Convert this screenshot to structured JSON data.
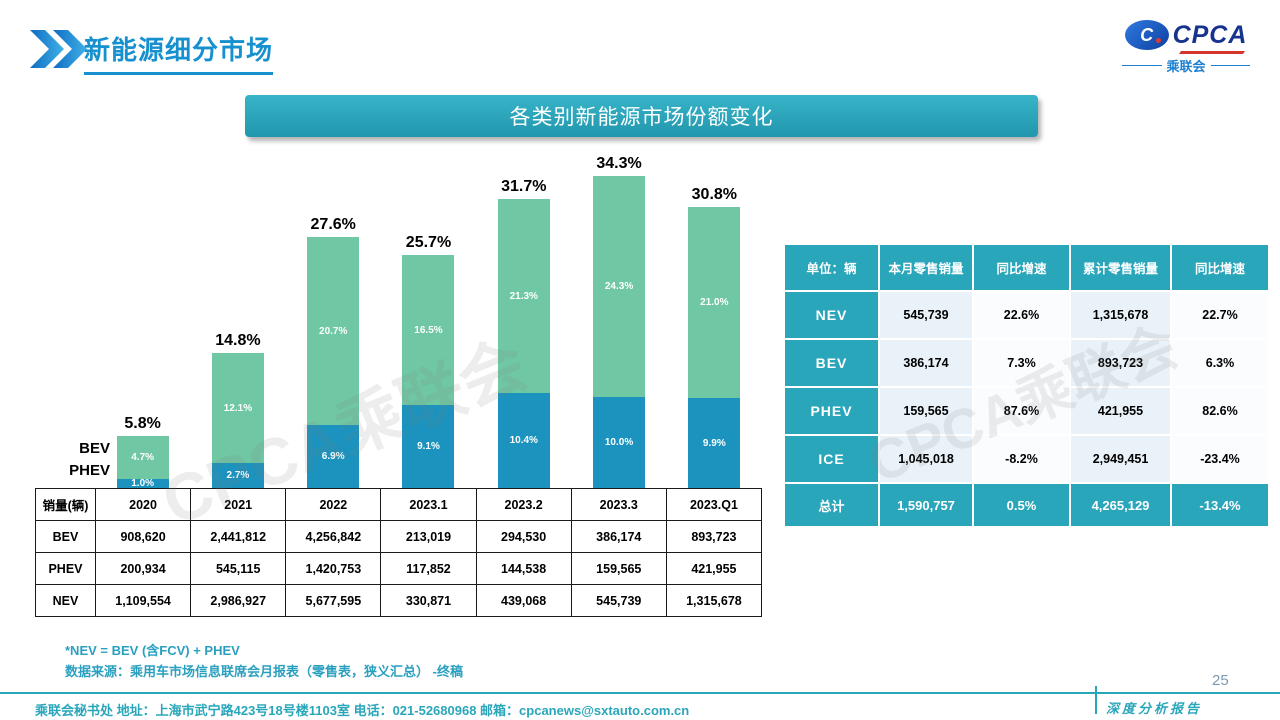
{
  "page": {
    "title": "新能源细分市场",
    "page_number": "25",
    "watermark": "CPCA乘联会",
    "footer": {
      "contact": "乘联会秘书处  地址：上海市武宁路423号18号楼1103室 电话：021-52680968  邮箱：cpcanews@sxtauto.com.cn",
      "report_label": "深度分析报告"
    }
  },
  "logo": {
    "cpca": "CPCA",
    "cn": "乘联会",
    "c": "C"
  },
  "banner": {
    "title": "各类别新能源市场份额变化"
  },
  "chart_data": {
    "type": "bar",
    "stacked": true,
    "title": "各类别新能源市场份额变化",
    "categories": [
      "2020",
      "2021",
      "2022",
      "2023.1",
      "2023.2",
      "2023.3",
      "2023.Q1"
    ],
    "series": [
      {
        "name": "PHEV",
        "color": "#1B93BE",
        "values": [
          1.0,
          2.7,
          6.9,
          9.1,
          10.4,
          10.0,
          9.9
        ],
        "labels": [
          "1.0%",
          "2.7%",
          "6.9%",
          "9.1%",
          "10.4%",
          "10.0%",
          "9.9%"
        ]
      },
      {
        "name": "BEV",
        "color": "#6FC8A3",
        "values": [
          4.7,
          12.1,
          20.7,
          16.5,
          21.3,
          24.3,
          21.0
        ],
        "labels": [
          "4.7%",
          "12.1%",
          "20.7%",
          "16.5%",
          "21.3%",
          "24.3%",
          "21.0%"
        ]
      }
    ],
    "stack_order_bottom_to_top": [
      "PHEV",
      "BEV"
    ],
    "totals": [
      "5.8%",
      "14.8%",
      "27.6%",
      "25.7%",
      "31.7%",
      "34.3%",
      "30.8%"
    ],
    "total_values": [
      5.8,
      14.8,
      27.6,
      25.7,
      31.7,
      34.3,
      30.8
    ],
    "legend": {
      "bev": "BEV",
      "phev": "PHEV"
    },
    "ylim": [
      0,
      38
    ],
    "grid": false
  },
  "left_table": {
    "header": [
      "销量(辆)",
      "2020",
      "2021",
      "2022",
      "2023.1",
      "2023.2",
      "2023.3",
      "2023.Q1"
    ],
    "rows": [
      [
        "BEV",
        "908,620",
        "2,441,812",
        "4,256,842",
        "213,019",
        "294,530",
        "386,174",
        "893,723"
      ],
      [
        "PHEV",
        "200,934",
        "545,115",
        "1,420,753",
        "117,852",
        "144,538",
        "159,565",
        "421,955"
      ],
      [
        "NEV",
        "1,109,554",
        "2,986,927",
        "5,677,595",
        "330,871",
        "439,068",
        "545,739",
        "1,315,678"
      ]
    ]
  },
  "right_table": {
    "header": [
      "单位：辆",
      "本月零售销量",
      "同比增速",
      "累计零售销量",
      "同比增速"
    ],
    "rows": [
      [
        "NEV",
        "545,739",
        "22.6%",
        "1,315,678",
        "22.7%"
      ],
      [
        "BEV",
        "386,174",
        "7.3%",
        "893,723",
        "6.3%"
      ],
      [
        "PHEV",
        "159,565",
        "87.6%",
        "421,955",
        "82.6%"
      ],
      [
        "ICE",
        "1,045,018",
        "-8.2%",
        "2,949,451",
        "-23.4%"
      ]
    ],
    "total_row": [
      "总计",
      "1,590,757",
      "0.5%",
      "4,265,129",
      "-13.4%"
    ]
  },
  "notes": {
    "line1": "*NEV = BEV (含FCV) + PHEV",
    "line2": "数据来源：乘用车市场信息联席会月报表（零售表，狭义汇总） -终稿"
  }
}
